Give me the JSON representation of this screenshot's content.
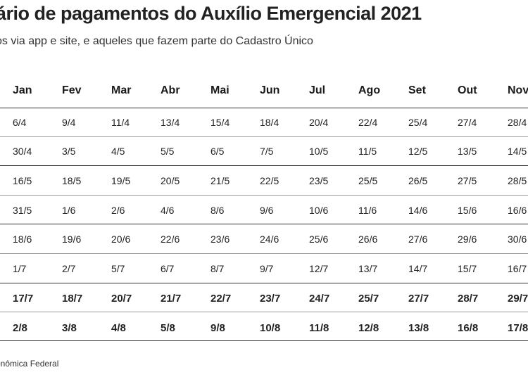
{
  "title": "ário de pagamentos do Auxílio Emergencial 2021",
  "subtitle": "os via app e site, e aqueles que fazem parte do Cadastro Único",
  "columns": [
    "Jan",
    "Fev",
    "Mar",
    "Abr",
    "Mai",
    "Jun",
    "Jul",
    "Ago",
    "Set",
    "Out",
    "Nov"
  ],
  "rows": [
    {
      "bold": false,
      "cells": [
        "6/4",
        "9/4",
        "11/4",
        "13/4",
        "15/4",
        "18/4",
        "20/4",
        "22/4",
        "25/4",
        "27/4",
        "28/4"
      ]
    },
    {
      "bold": false,
      "cells": [
        "30/4",
        "3/5",
        "4/5",
        "5/5",
        "6/5",
        "7/5",
        "10/5",
        "11/5",
        "12/5",
        "13/5",
        "14/5"
      ]
    },
    {
      "bold": false,
      "cells": [
        "16/5",
        "18/5",
        "19/5",
        "20/5",
        "21/5",
        "22/5",
        "23/5",
        "25/5",
        "26/5",
        "27/5",
        "28/5"
      ]
    },
    {
      "bold": false,
      "cells": [
        "31/5",
        "1/6",
        "2/6",
        "4/6",
        "8/6",
        "9/6",
        "10/6",
        "11/6",
        "14/6",
        "15/6",
        "16/6"
      ]
    },
    {
      "bold": false,
      "cells": [
        "18/6",
        "19/6",
        "20/6",
        "22/6",
        "23/6",
        "24/6",
        "25/6",
        "26/6",
        "27/6",
        "29/6",
        "30/6"
      ]
    },
    {
      "bold": false,
      "cells": [
        "1/7",
        "2/7",
        "5/7",
        "6/7",
        "8/7",
        "9/7",
        "12/7",
        "13/7",
        "14/7",
        "15/7",
        "16/7"
      ]
    },
    {
      "bold": true,
      "cells": [
        "17/7",
        "18/7",
        "20/7",
        "21/7",
        "22/7",
        "23/7",
        "24/7",
        "25/7",
        "27/7",
        "28/7",
        "29/7"
      ]
    },
    {
      "bold": true,
      "cells": [
        "2/8",
        "3/8",
        "4/8",
        "5/8",
        "9/8",
        "10/8",
        "11/8",
        "12/8",
        "13/8",
        "16/8",
        "17/8"
      ]
    }
  ],
  "source": "onômica Federal"
}
